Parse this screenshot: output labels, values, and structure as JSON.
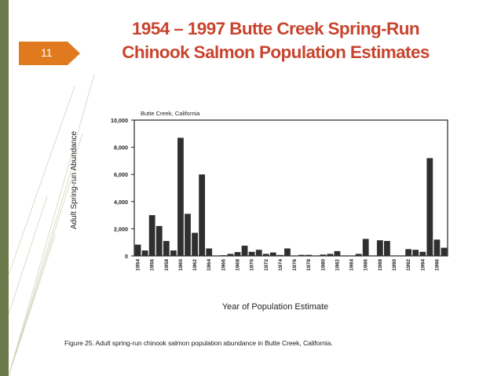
{
  "slide": {
    "number": "11",
    "title_line1": "1954 – 1997 Butte Creek Spring-Run",
    "title_line2": "Chinook Salmon Population Estimates",
    "caption": "Figure 25.  Adult spring-run chinook salmon population abundance in Butte Creek, California.",
    "colors": {
      "accent_bar": "#6b7a4a",
      "title": "#c8442e",
      "number_tab": "#e07a1f"
    }
  },
  "chart_data": {
    "type": "bar",
    "title": "Butte Creek, California",
    "xlabel": "Year of Population Estimate",
    "ylabel": "Adult Spring-run Abundance",
    "ylim": [
      0,
      10000
    ],
    "yticks": [
      0,
      2000,
      4000,
      6000,
      8000,
      10000
    ],
    "ytick_labels": [
      "0",
      "2,000",
      "4,000",
      "6,000",
      "8,000",
      "10,000"
    ],
    "xtick_labels": [
      "1954",
      "1956",
      "1958",
      "1960",
      "1962",
      "1964",
      "1966",
      "1968",
      "1970",
      "1972",
      "1974",
      "1976",
      "1978",
      "1980",
      "1982",
      "1984",
      "1986",
      "1988",
      "1990",
      "1992",
      "1994",
      "1996"
    ],
    "categories": [
      1954,
      1955,
      1956,
      1957,
      1958,
      1959,
      1960,
      1961,
      1962,
      1963,
      1964,
      1965,
      1966,
      1967,
      1968,
      1969,
      1970,
      1971,
      1972,
      1973,
      1974,
      1975,
      1976,
      1977,
      1978,
      1979,
      1980,
      1981,
      1982,
      1983,
      1984,
      1985,
      1986,
      1987,
      1988,
      1989,
      1990,
      1991,
      1992,
      1993,
      1994,
      1995,
      1996,
      1997
    ],
    "values": [
      830,
      400,
      3000,
      2200,
      1100,
      400,
      8700,
      3100,
      1700,
      6000,
      550,
      0,
      50,
      150,
      280,
      750,
      300,
      450,
      150,
      250,
      70,
      550,
      0,
      80,
      80,
      0,
      100,
      150,
      350,
      0,
      0,
      150,
      1250,
      0,
      1150,
      1100,
      0,
      0,
      500,
      450,
      300,
      7200,
      1200,
      600
    ],
    "grid": false
  }
}
